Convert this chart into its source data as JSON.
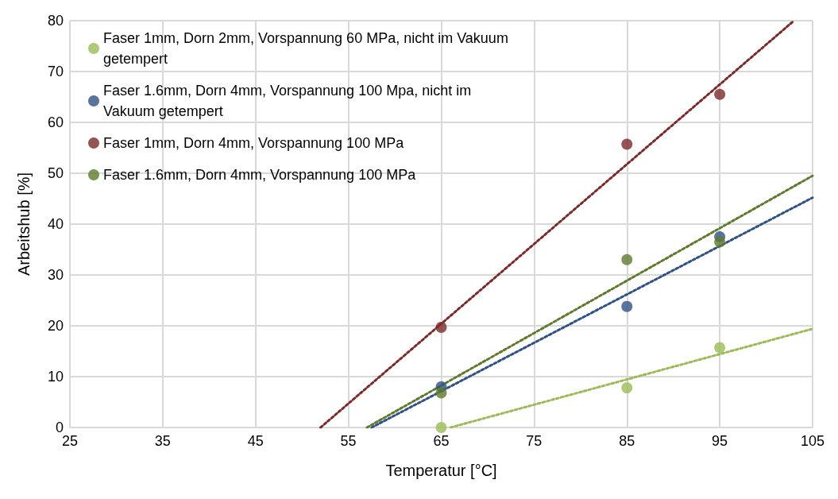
{
  "chart_data": {
    "type": "scatter",
    "xlabel": "Temperatur [°C]",
    "ylabel": "Arbeitshub [%]",
    "xlim": [
      25,
      105
    ],
    "xticks": [
      25,
      35,
      45,
      55,
      65,
      75,
      85,
      95,
      105
    ],
    "ylim": [
      0,
      80
    ],
    "yticks": [
      0,
      10,
      20,
      30,
      40,
      50,
      60,
      70,
      80
    ],
    "grid": true,
    "legend": "top left",
    "marker": "circle",
    "series": [
      {
        "name": "Faser 1mm, Dorn 2mm, Vorspannung 60 MPa, nicht im Vakuum getempert",
        "color": "#9bbb59",
        "x": [
          65,
          85,
          95
        ],
        "values": [
          0,
          7.8,
          15.7
        ]
      },
      {
        "name": "Faser 1.6mm, Dorn 4mm, Vorspannung 100 Mpa, nicht im Vakuum getempert",
        "color": "#2f5283",
        "x": [
          65,
          85,
          95
        ],
        "values": [
          8,
          23.8,
          37.5
        ]
      },
      {
        "name": "Faser 1mm, Dorn 4mm, Vorspannung 100 MPa",
        "color": "#7b2a2a",
        "x": [
          65,
          85,
          95
        ],
        "values": [
          19.7,
          55.7,
          65.5
        ]
      },
      {
        "name": "Faser 1.6mm, Dorn 4mm, Vorspannung 100 MPa",
        "color": "#5f7a2e",
        "x": [
          65,
          85,
          95
        ],
        "values": [
          6.8,
          33,
          36.5
        ]
      },
      {
        "type": "line",
        "line_style": "dotted",
        "marker": "none",
        "color": "#9bbb59",
        "x": [
          66,
          105
        ],
        "values": [
          0,
          19.4
        ]
      },
      {
        "type": "line",
        "line_style": "dotted",
        "marker": "none",
        "color": "#2f5283",
        "x": [
          57.5,
          105
        ],
        "values": [
          0,
          45.2
        ]
      },
      {
        "type": "line",
        "line_style": "dotted",
        "marker": "none",
        "color": "#7b2a2a",
        "x": [
          52,
          103
        ],
        "values": [
          0,
          80
        ]
      },
      {
        "type": "line",
        "line_style": "dotted",
        "marker": "none",
        "color": "#5f7a2e",
        "x": [
          57,
          105
        ],
        "values": [
          0,
          49.5
        ]
      }
    ]
  }
}
